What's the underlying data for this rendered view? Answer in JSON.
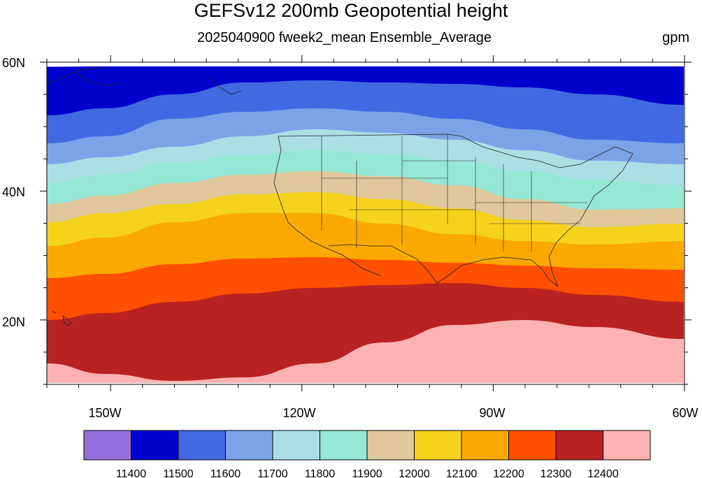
{
  "title": "GEFSv12 200mb Geopotential height",
  "subtitle": "2025040900 fweek2_mean Ensemble_Average",
  "units": "gpm",
  "map": {
    "lat_range": [
      10,
      60
    ],
    "lon_range": [
      -160,
      -60
    ],
    "lat_labels": [
      "60N",
      "40N",
      "20N"
    ],
    "lon_labels": [
      "150W",
      "120W",
      "90W",
      "60W"
    ],
    "colors": [
      "#9370db",
      "#0000cd",
      "#4169e1",
      "#7ba4e8",
      "#aadfe6",
      "#95e8d4",
      "#e0c89c",
      "#f5d21c",
      "#fba900",
      "#ff4f00",
      "#b82222",
      "#ffb2b2"
    ]
  },
  "colorbar": {
    "levels": [
      11400,
      11500,
      11600,
      11700,
      11800,
      11900,
      12000,
      12100,
      12200,
      12300,
      12400
    ],
    "labels": [
      "11400",
      "11500",
      "11600",
      "11700",
      "11800",
      "11900",
      "12000",
      "12100",
      "12200",
      "12300",
      "12400"
    ]
  }
}
